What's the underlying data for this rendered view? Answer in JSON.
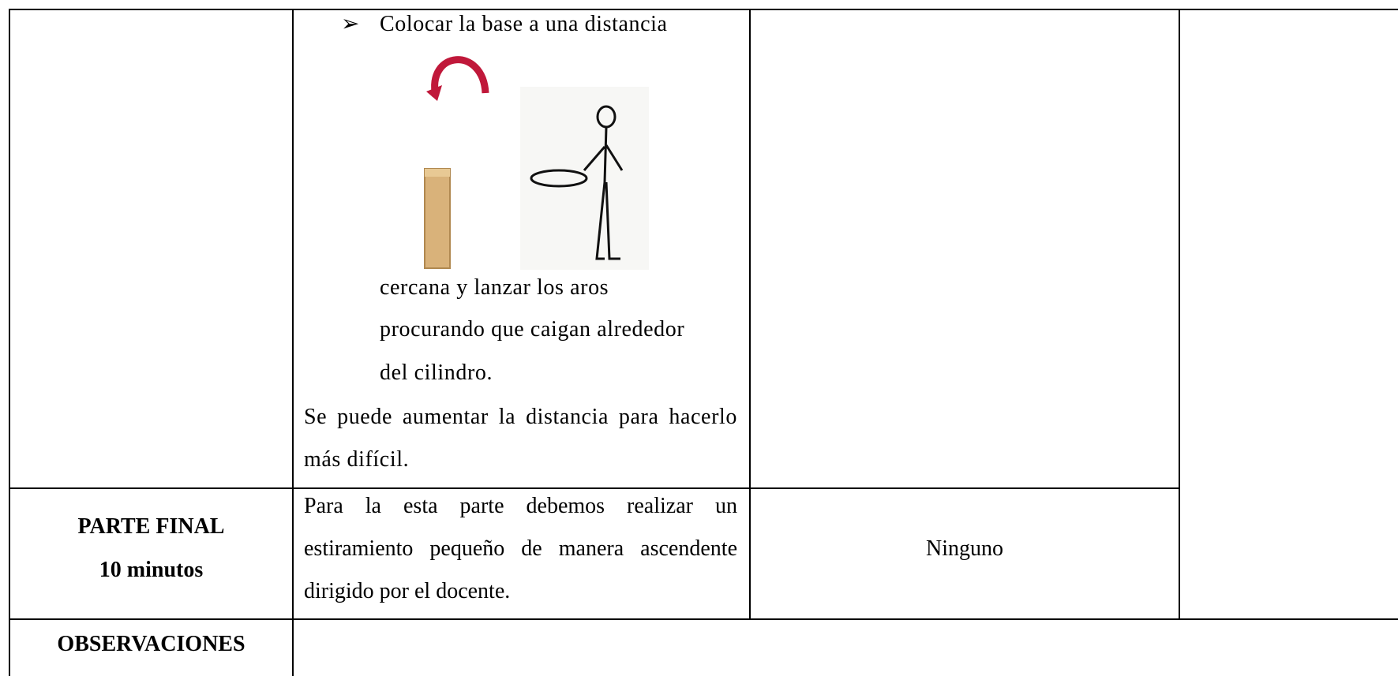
{
  "table": {
    "rows": [
      {
        "activity": {
          "bullet": "Colocar la base a una distancia",
          "continuation": [
            "cercana y lanzar los aros",
            "procurando que caigan alrededor",
            "del cilindro."
          ],
          "note": "Se puede aumentar la distancia para hacerlo más difícil."
        }
      },
      {
        "phase": "PARTE FINAL",
        "duration": "10 minutos",
        "activity": "Para la esta parte debemos realizar un estiramiento pequeño de manera ascendente dirigido por el docente.",
        "materials": "Ninguno"
      },
      {
        "phase": "OBSERVACIONES"
      }
    ]
  }
}
